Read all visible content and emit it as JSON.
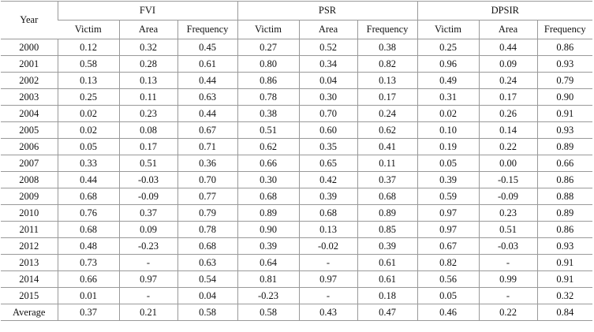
{
  "header": {
    "year_label": "Year",
    "groups": [
      "FVI",
      "PSR",
      "DPSIR"
    ],
    "subcolumns": [
      "Victim",
      "Area",
      "Frequency"
    ]
  },
  "rows": [
    {
      "year": "2000",
      "v": [
        "0.12",
        "0.32",
        "0.45",
        "0.27",
        "0.52",
        "0.38",
        "0.25",
        "0.44",
        "0.86"
      ]
    },
    {
      "year": "2001",
      "v": [
        "0.58",
        "0.28",
        "0.61",
        "0.80",
        "0.34",
        "0.82",
        "0.96",
        "0.09",
        "0.93"
      ]
    },
    {
      "year": "2002",
      "v": [
        "0.13",
        "0.13",
        "0.44",
        "0.86",
        "0.04",
        "0.13",
        "0.49",
        "0.24",
        "0.79"
      ]
    },
    {
      "year": "2003",
      "v": [
        "0.25",
        "0.11",
        "0.63",
        "0.78",
        "0.30",
        "0.17",
        "0.31",
        "0.17",
        "0.90"
      ]
    },
    {
      "year": "2004",
      "v": [
        "0.02",
        "0.23",
        "0.44",
        "0.38",
        "0.70",
        "0.24",
        "0.02",
        "0.26",
        "0.91"
      ]
    },
    {
      "year": "2005",
      "v": [
        "0.02",
        "0.08",
        "0.67",
        "0.51",
        "0.60",
        "0.62",
        "0.10",
        "0.14",
        "0.93"
      ]
    },
    {
      "year": "2006",
      "v": [
        "0.05",
        "0.17",
        "0.71",
        "0.62",
        "0.35",
        "0.41",
        "0.19",
        "0.22",
        "0.89"
      ]
    },
    {
      "year": "2007",
      "v": [
        "0.33",
        "0.51",
        "0.36",
        "0.66",
        "0.65",
        "0.11",
        "0.05",
        "0.00",
        "0.66"
      ]
    },
    {
      "year": "2008",
      "v": [
        "0.44",
        "-0.03",
        "0.70",
        "0.30",
        "0.42",
        "0.37",
        "0.39",
        "-0.15",
        "0.86"
      ]
    },
    {
      "year": "2009",
      "v": [
        "0.68",
        "-0.09",
        "0.77",
        "0.68",
        "0.39",
        "0.68",
        "0.59",
        "-0.09",
        "0.88"
      ]
    },
    {
      "year": "2010",
      "v": [
        "0.76",
        "0.37",
        "0.79",
        "0.89",
        "0.68",
        "0.89",
        "0.97",
        "0.23",
        "0.89"
      ]
    },
    {
      "year": "2011",
      "v": [
        "0.68",
        "0.09",
        "0.78",
        "0.90",
        "0.13",
        "0.85",
        "0.97",
        "0.51",
        "0.86"
      ]
    },
    {
      "year": "2012",
      "v": [
        "0.48",
        "-0.23",
        "0.68",
        "0.39",
        "-0.02",
        "0.39",
        "0.67",
        "-0.03",
        "0.93"
      ]
    },
    {
      "year": "2013",
      "v": [
        "0.73",
        "-",
        "0.63",
        "0.64",
        "-",
        "0.61",
        "0.82",
        "-",
        "0.91"
      ]
    },
    {
      "year": "2014",
      "v": [
        "0.66",
        "0.97",
        "0.54",
        "0.81",
        "0.97",
        "0.61",
        "0.56",
        "0.99",
        "0.91"
      ]
    },
    {
      "year": "2015",
      "v": [
        "0.01",
        "-",
        "0.04",
        "-0.23",
        "-",
        "0.18",
        "0.05",
        "-",
        "0.32"
      ]
    },
    {
      "year": "Average",
      "v": [
        "0.37",
        "0.21",
        "0.58",
        "0.58",
        "0.43",
        "0.47",
        "0.46",
        "0.22",
        "0.84"
      ]
    }
  ]
}
